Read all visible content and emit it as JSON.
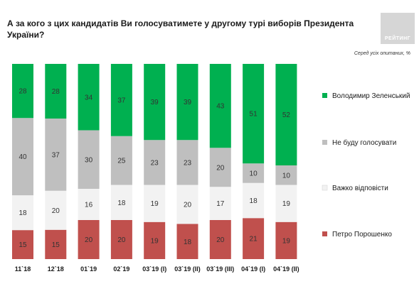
{
  "header": {
    "title": "А за кого з цих кандидатів Ви голосуватимете у другому турі виборів Президента України?",
    "logo_text": "РЕЙТИНГ",
    "subtitle": "Серед усіх опитаних, %"
  },
  "chart_data": {
    "type": "bar",
    "stacked": true,
    "percent": true,
    "categories": [
      "11`18",
      "12`18",
      "01`19",
      "02`19",
      "03`19 (I)",
      "03`19 (II)",
      "03`19 (III)",
      "04`19 (I)",
      "04`19 (II)"
    ],
    "series": [
      {
        "name": "Петро Порошенко",
        "color": "#c0504d",
        "values": [
          15,
          15,
          20,
          20,
          19,
          18,
          20,
          21,
          19
        ]
      },
      {
        "name": "Важко відповісти",
        "color": "#f2f2f2",
        "values": [
          18,
          20,
          16,
          18,
          19,
          20,
          17,
          18,
          19
        ]
      },
      {
        "name": "Не буду голосувати",
        "color": "#bfbfbf",
        "values": [
          40,
          37,
          30,
          25,
          23,
          23,
          20,
          10,
          10
        ]
      },
      {
        "name": "Володимир Зеленський",
        "color": "#00b050",
        "values": [
          28,
          28,
          34,
          37,
          39,
          39,
          43,
          51,
          52
        ]
      }
    ],
    "legend_order": [
      "Володимир Зеленський",
      "Не буду голосувати",
      "Важко відповісти",
      "Петро Порошенко"
    ],
    "legend_position": "right",
    "grid": false,
    "ylim": [
      0,
      100
    ]
  }
}
